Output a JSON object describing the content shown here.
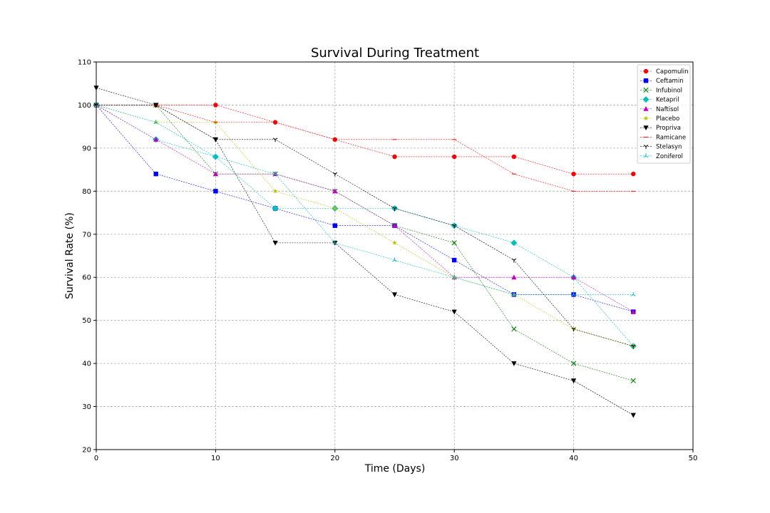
{
  "chart_data": {
    "type": "line",
    "title": "Survival During Treatment",
    "xlabel": "Time (Days)",
    "ylabel": "Survival Rate (%)",
    "xlim": [
      0,
      50
    ],
    "ylim": [
      20,
      110
    ],
    "xticks": [
      0,
      10,
      20,
      30,
      40,
      50
    ],
    "yticks": [
      20,
      30,
      40,
      50,
      60,
      70,
      80,
      90,
      100,
      110
    ],
    "grid": true,
    "legend_position": "top-right",
    "x": [
      0,
      5,
      10,
      15,
      20,
      25,
      30,
      35,
      40,
      45
    ],
    "series": [
      {
        "name": "Capomulin",
        "color": "#ff0000",
        "marker": "circle",
        "values": [
          100,
          100,
          100,
          96,
          92,
          88,
          88,
          88,
          84,
          84
        ]
      },
      {
        "name": "Ceftamin",
        "color": "#0000ff",
        "marker": "square",
        "values": [
          100,
          84,
          80,
          76,
          72,
          72,
          64,
          56,
          56,
          52
        ]
      },
      {
        "name": "Infubinol",
        "color": "#008000",
        "marker": "x",
        "values": [
          100,
          100,
          84,
          84,
          80,
          72,
          68,
          48,
          40,
          36
        ]
      },
      {
        "name": "Ketapril",
        "color": "#00bfbf",
        "marker": "diamond",
        "values": [
          100,
          92,
          88,
          76,
          76,
          76,
          72,
          68,
          60,
          44
        ]
      },
      {
        "name": "Naftisol",
        "color": "#bf00bf",
        "marker": "triangle-up",
        "values": [
          100,
          92,
          84,
          84,
          80,
          72,
          60,
          60,
          60,
          52
        ]
      },
      {
        "name": "Placebo",
        "color": "#bfbf00",
        "marker": "star",
        "values": [
          100,
          96,
          96,
          80,
          76,
          68,
          60,
          56,
          48,
          44
        ]
      },
      {
        "name": "Propriva",
        "color": "#000000",
        "marker": "triangle-down",
        "values": [
          104,
          100,
          92,
          68,
          68,
          56,
          52,
          40,
          36,
          28
        ]
      },
      {
        "name": "Ramicane",
        "color": "#ff0000",
        "marker": "hline",
        "values": [
          100,
          100,
          96,
          96,
          92,
          92,
          92,
          84,
          80,
          80
        ]
      },
      {
        "name": "Stelasyn",
        "color": "#000000",
        "marker": "tri-down",
        "values": [
          100,
          100,
          92,
          92,
          84,
          76,
          72,
          64,
          48,
          44
        ]
      },
      {
        "name": "Zoniferol",
        "color": "#00bfbf",
        "marker": "tri-up",
        "values": [
          100,
          96,
          88,
          84,
          68,
          64,
          60,
          56,
          56,
          56
        ]
      }
    ]
  }
}
